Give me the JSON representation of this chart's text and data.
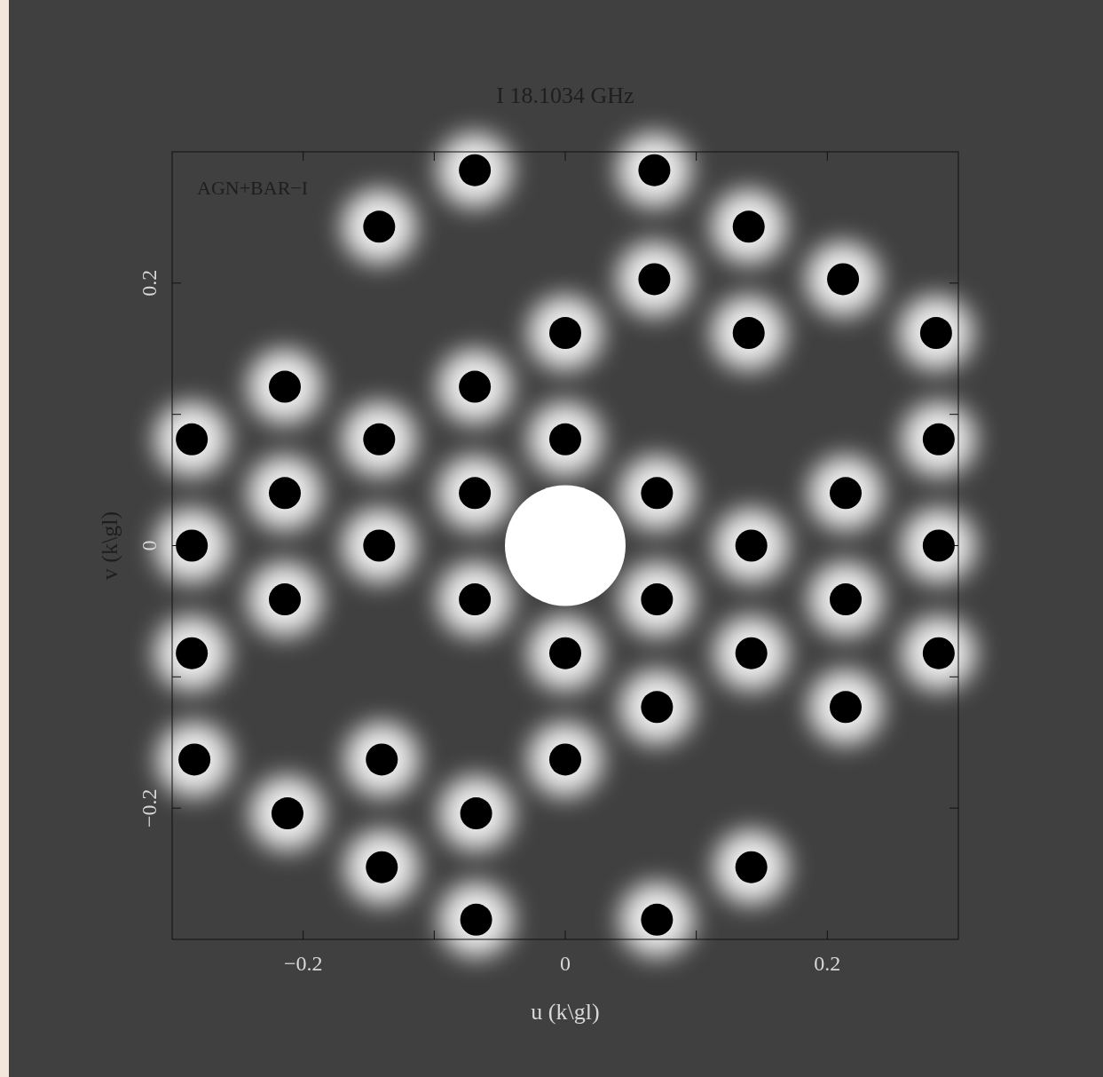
{
  "chart_data": {
    "type": "scatter",
    "title": "I 18.1034 GHz",
    "xlabel": "u (k\\gl)",
    "ylabel": "v (k\\gl)",
    "annotations": [
      "AGN+BAR−I"
    ],
    "xlim": [
      -0.3,
      0.3
    ],
    "ylim": [
      -0.3,
      0.3
    ],
    "xticks": [
      -0.2,
      {
        "value": -0.1,
        "label": null
      },
      0,
      {
        "value": 0.1,
        "label": null
      },
      0.2
    ],
    "yticks": [
      -0.2,
      {
        "value": -0.1,
        "label": null
      },
      0,
      {
        "value": 0.1,
        "label": null
      },
      0.2
    ],
    "grid": false,
    "marker": "circle",
    "series": [
      {
        "color": "#000000",
        "x": [
          -0.069,
          0.068,
          -0.142,
          0.14,
          0.068,
          0.212,
          0,
          0.14,
          0.283,
          -0.214,
          -0.069,
          -0.285,
          -0.142,
          0,
          0.285,
          -0.214,
          -0.069,
          0.07,
          0.214,
          -0.285,
          -0.142,
          0.142,
          0.285,
          -0.214,
          -0.069,
          0.07,
          0.214,
          -0.285,
          0,
          0.142,
          0.285,
          0.07,
          0.214,
          -0.283,
          -0.14,
          0,
          -0.212,
          -0.068,
          -0.14,
          0.142,
          -0.068,
          0.07
        ],
        "values": [
          0.286,
          0.286,
          0.243,
          0.243,
          0.203,
          0.203,
          0.162,
          0.162,
          0.162,
          0.121,
          0.121,
          0.081,
          0.081,
          0.081,
          0.081,
          0.04,
          0.04,
          0.04,
          0.04,
          0,
          0,
          0,
          0,
          -0.041,
          -0.041,
          -0.041,
          -0.041,
          -0.082,
          -0.082,
          -0.082,
          -0.082,
          -0.123,
          -0.123,
          -0.163,
          -0.163,
          -0.163,
          -0.204,
          -0.204,
          -0.245,
          -0.245,
          -0.285,
          -0.285
        ]
      }
    ]
  }
}
